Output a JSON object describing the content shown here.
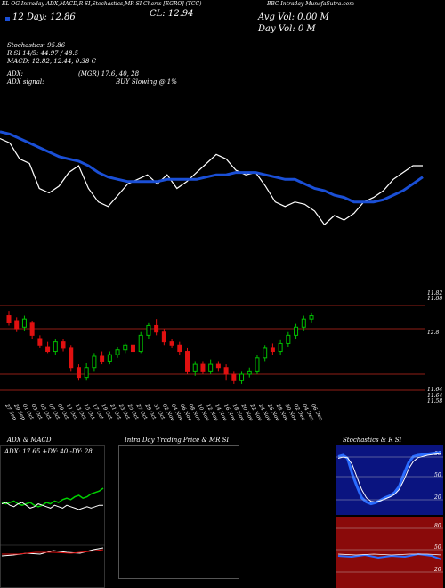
{
  "header": {
    "line1": "EL OG Intraday ADX,MACD,R SI,Stochastics,MR SI Charts [EGRO]                (TCC)",
    "line1_right": "BBC Intraday MunafaSutra.com",
    "price_close": "CL: 12.94",
    "open_line": "12   Day: 12.86",
    "avg_vol": "Avg Vol: 0.00   M",
    "day_vol": "Day Vol: 0   M",
    "stoch": "Stochastics: 95.86",
    "rsi": "R          SI 14/5: 44.97 / 48.5",
    "macd": "MACD: 12.82, 12.44, 0.38  C",
    "adx_label": "ADX:",
    "adx_values": "(MGR) 17.6, 40, 28",
    "adx_signal_label": "ADX  signal:",
    "signal": "BUY Slowing @ 1%"
  },
  "colors": {
    "background": "#000000",
    "price_line": "#ffffff",
    "ma_line": "#1a4fd6",
    "up_candle": "#00c000",
    "down_candle": "#e01010",
    "level_line": "#c0281e",
    "axis_text": "#ffffff"
  },
  "chart_data": [
    {
      "type": "line",
      "series": [
        {
          "values": [
            12.95,
            12.93,
            12.86,
            12.84,
            12.73,
            12.71,
            12.74,
            12.8,
            12.83,
            12.73,
            12.67,
            12.65,
            12.7,
            12.75,
            12.77,
            12.79,
            12.75,
            12.79,
            12.73,
            12.76,
            12.8,
            12.84,
            12.88,
            12.86,
            12.81,
            12.79,
            12.8,
            12.74,
            12.67,
            12.65,
            12.67,
            12.66,
            12.63,
            12.57,
            12.61,
            12.59,
            12.62,
            12.67,
            12.69,
            12.72,
            12.77,
            12.8,
            12.83,
            12.83
          ]
        },
        {
          "values": [
            12.98,
            12.97,
            12.95,
            12.93,
            12.91,
            12.89,
            12.87,
            12.86,
            12.85,
            12.83,
            12.8,
            12.78,
            12.77,
            12.76,
            12.76,
            12.76,
            12.76,
            12.77,
            12.77,
            12.77,
            12.77,
            12.78,
            12.79,
            12.79,
            12.8,
            12.8,
            12.8,
            12.79,
            12.78,
            12.77,
            12.77,
            12.75,
            12.73,
            12.72,
            12.7,
            12.69,
            12.67,
            12.67,
            12.67,
            12.68,
            12.7,
            12.72,
            12.75,
            12.78
          ]
        }
      ]
    },
    {
      "type": "bar",
      "title": "candles",
      "levels": [
        "11.82",
        "11.88",
        "12.8",
        "11.64",
        "11.64",
        "11.58"
      ],
      "x_labels": [
        "27 Sep",
        "29 Sep",
        "01 Oct",
        "03 Oct",
        "05 Oct",
        "07 Oct",
        "09 Oct",
        "11 Oct",
        "13 Oct",
        "15 Oct",
        "17 Oct",
        "19 Oct",
        "21 Oct",
        "23 Oct",
        "25 Oct",
        "27 Oct",
        "29 Oct",
        "31 Oct",
        "02 Nov",
        "04 Nov",
        "06 Nov",
        "08 Nov",
        "10 Nov",
        "12 Nov",
        "14 Nov",
        "16 Nov",
        "18 Nov",
        "20 Nov",
        "22 Nov",
        "24 Nov",
        "26 Nov",
        "28 Nov",
        "30 Nov",
        "02 Dec",
        "04 Dec",
        "06 Dec"
      ],
      "candles": [
        [
          12.92,
          12.88,
          12.95,
          12.86
        ],
        [
          12.89,
          12.84,
          12.91,
          12.82
        ],
        [
          12.85,
          12.9,
          12.92,
          12.83
        ],
        [
          12.88,
          12.8,
          12.89,
          12.78
        ],
        [
          12.78,
          12.74,
          12.8,
          12.72
        ],
        [
          12.73,
          12.7,
          12.76,
          12.69
        ],
        [
          12.7,
          12.76,
          12.78,
          12.68
        ],
        [
          12.76,
          12.72,
          12.78,
          12.7
        ],
        [
          12.72,
          12.6,
          12.74,
          12.58
        ],
        [
          12.6,
          12.54,
          12.62,
          12.52
        ],
        [
          12.54,
          12.6,
          12.63,
          12.52
        ],
        [
          12.6,
          12.67,
          12.69,
          12.58
        ],
        [
          12.67,
          12.64,
          12.7,
          12.62
        ],
        [
          12.64,
          12.68,
          12.7,
          12.62
        ],
        [
          12.68,
          12.71,
          12.73,
          12.66
        ],
        [
          12.71,
          12.74,
          12.75,
          12.69
        ],
        [
          12.74,
          12.7,
          12.76,
          12.68
        ],
        [
          12.7,
          12.8,
          12.82,
          12.69
        ],
        [
          12.8,
          12.86,
          12.88,
          12.78
        ],
        [
          12.86,
          12.82,
          12.9,
          12.8
        ],
        [
          12.82,
          12.76,
          12.84,
          12.74
        ],
        [
          12.76,
          12.74,
          12.78,
          12.72
        ],
        [
          12.74,
          12.7,
          12.76,
          12.68
        ],
        [
          12.7,
          12.58,
          12.72,
          12.56
        ],
        [
          12.58,
          12.62,
          12.64,
          12.55
        ],
        [
          12.62,
          12.58,
          12.64,
          12.56
        ],
        [
          12.58,
          12.62,
          12.65,
          12.56
        ],
        [
          12.62,
          12.6,
          12.64,
          12.58
        ],
        [
          12.6,
          12.56,
          12.62,
          12.52
        ],
        [
          12.56,
          12.52,
          12.58,
          12.5
        ],
        [
          12.52,
          12.56,
          12.58,
          12.5
        ],
        [
          12.56,
          12.58,
          12.6,
          12.54
        ],
        [
          12.58,
          12.66,
          12.68,
          12.56
        ],
        [
          12.66,
          12.72,
          12.74,
          12.64
        ],
        [
          12.72,
          12.7,
          12.75,
          12.68
        ],
        [
          12.7,
          12.75,
          12.77,
          12.68
        ],
        [
          12.75,
          12.8,
          12.82,
          12.73
        ],
        [
          12.8,
          12.85,
          12.87,
          12.78
        ],
        [
          12.85,
          12.9,
          12.92,
          12.83
        ],
        [
          12.9,
          12.92,
          12.94,
          12.88
        ]
      ]
    },
    {
      "type": "line",
      "title": "ADX & MACD",
      "readout": "ADX: 17.65  +DY: 40  -DY: 28",
      "series": [
        {
          "values": [
            30,
            29,
            30,
            31,
            29,
            28,
            29,
            30,
            28,
            27,
            28,
            30,
            29,
            31,
            30,
            32,
            33,
            32,
            34,
            35,
            33,
            34,
            36,
            37,
            38,
            40
          ]
        },
        {
          "values": [
            29,
            30,
            28,
            27,
            29,
            30,
            28,
            26,
            27,
            29,
            28,
            27,
            26,
            28,
            27,
            26,
            28,
            27,
            26,
            25,
            26,
            27,
            26,
            27,
            28,
            28
          ]
        }
      ]
    },
    {
      "type": "line",
      "title": "Intra  Day Trading Price  & MR                SI"
    },
    {
      "type": "line",
      "title": "Stochastics & R                SI",
      "ticks": [
        "80",
        "50",
        "20"
      ],
      "series": [
        {
          "values": [
            88,
            90,
            85,
            60,
            40,
            22,
            15,
            12,
            14,
            18,
            22,
            25,
            30,
            40,
            60,
            78,
            88,
            90,
            91,
            92,
            93,
            94,
            95
          ]
        },
        {
          "values": [
            85,
            87,
            86,
            75,
            55,
            35,
            22,
            16,
            15,
            17,
            20,
            23,
            27,
            35,
            50,
            68,
            80,
            86,
            88,
            90,
            91,
            92,
            93
          ]
        }
      ]
    }
  ]
}
